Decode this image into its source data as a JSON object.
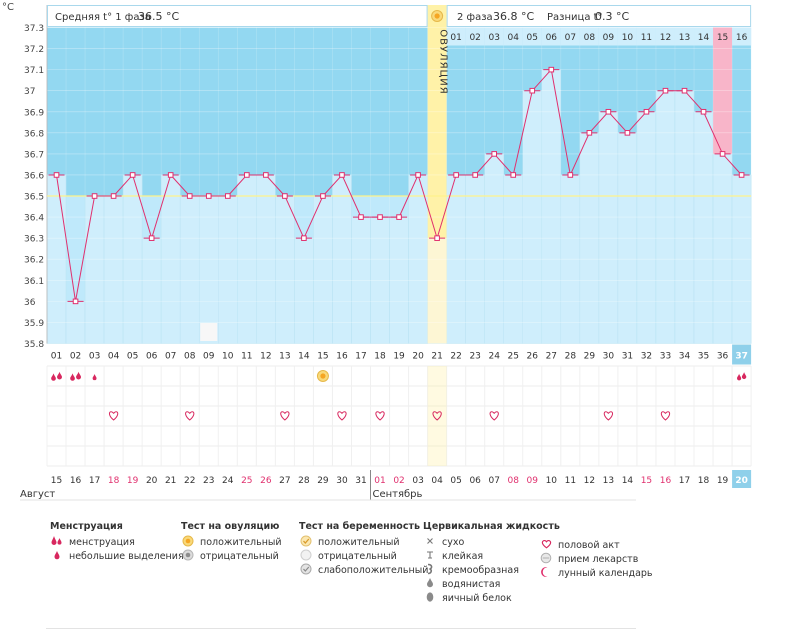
{
  "header": {
    "unit": "°C",
    "phase1_label": "Средняя t° 1 фаза",
    "phase1_value": "36.5 °C",
    "phase2_label": "2 фаза",
    "phase2_value": "36.8 °C",
    "diff_label": "Разница t°",
    "diff_value": "0.3 °C",
    "ovulation_label": "ОВУЛЯЦИЯ"
  },
  "colors": {
    "bg_upper": "#93d8f1",
    "bg_lower": "#bfe9fb",
    "bar": "#cfeefc",
    "bar_border": "#a6dbf0",
    "line": "#e0306e",
    "ovulation": "#fff2a8",
    "highlight": "#f8b5c9",
    "coverline": "#fff38a",
    "weekend": "#e0306e"
  },
  "chart_data": {
    "type": "line",
    "title": "",
    "ylim": [
      35.8,
      37.3
    ],
    "yticks": [
      "35.8",
      "35.9",
      "36",
      "36.1",
      "36.2",
      "36.3",
      "36.4",
      "36.5",
      "36.6",
      "36.7",
      "36.8",
      "36.9",
      "37",
      "37.1",
      "37.2",
      "37.3"
    ],
    "coverline": 36.5,
    "cycle_days": [
      "01",
      "02",
      "03",
      "04",
      "05",
      "06",
      "07",
      "08",
      "09",
      "10",
      "11",
      "12",
      "13",
      "14",
      "15",
      "16",
      "17",
      "18",
      "19",
      "20",
      "21",
      "22",
      "23",
      "24",
      "25",
      "26",
      "27",
      "28",
      "29",
      "30",
      "31",
      "32",
      "33",
      "34",
      "35",
      "36",
      "37"
    ],
    "phase2_days": [
      "01",
      "02",
      "03",
      "04",
      "05",
      "06",
      "07",
      "08",
      "09",
      "10",
      "11",
      "12",
      "13",
      "14",
      "15",
      "16"
    ],
    "values": [
      36.6,
      36.0,
      36.5,
      36.5,
      36.6,
      36.3,
      36.6,
      36.5,
      36.5,
      36.5,
      36.6,
      36.6,
      36.5,
      36.3,
      36.5,
      36.6,
      36.4,
      36.4,
      36.4,
      36.6,
      36.3,
      36.6,
      36.6,
      36.7,
      36.6,
      37.0,
      37.1,
      36.6,
      36.8,
      36.9,
      36.8,
      36.9,
      37.0,
      37.0,
      36.9,
      36.7,
      36.6
    ],
    "ovulation_day": 21,
    "highlight_day": 36,
    "current_day": 37,
    "dates": [
      "15",
      "16",
      "17",
      "18",
      "19",
      "20",
      "21",
      "22",
      "23",
      "24",
      "25",
      "26",
      "27",
      "28",
      "29",
      "30",
      "31",
      "01",
      "02",
      "03",
      "04",
      "05",
      "06",
      "07",
      "08",
      "09",
      "10",
      "11",
      "12",
      "13",
      "14",
      "15",
      "16",
      "17",
      "18",
      "19",
      "20"
    ],
    "weekend_days": [
      4,
      5,
      11,
      12,
      18,
      19,
      25,
      26,
      32,
      33
    ],
    "months": [
      "Август",
      "Сентябрь"
    ],
    "menstruation_days": [
      1,
      2
    ],
    "spotting_days": [
      3,
      37
    ],
    "ovulation_test_positive_days": [
      15
    ],
    "intercourse_days": [
      4,
      8,
      13,
      16,
      18,
      21,
      24,
      30,
      33
    ],
    "lunar_days": [
      9
    ]
  },
  "legend": {
    "menstruation": {
      "title": "Менструация",
      "items": [
        "менструация",
        "небольшие выделения"
      ]
    },
    "ovulation_test": {
      "title": "Тест на овуляцию",
      "items": [
        "положительный",
        "отрицательный"
      ]
    },
    "pregnancy_test": {
      "title": "Тест на беременность",
      "items": [
        "положительный",
        "отрицательный",
        "слабоположительный"
      ]
    },
    "cervical": {
      "title": "Цервикальная жидкость",
      "items": [
        "сухо",
        "клейкая",
        "кремообразная",
        "водянистая",
        "яичный белок"
      ]
    },
    "other": {
      "items": [
        "половой акт",
        "прием лекарств",
        "лунный календарь"
      ]
    }
  }
}
